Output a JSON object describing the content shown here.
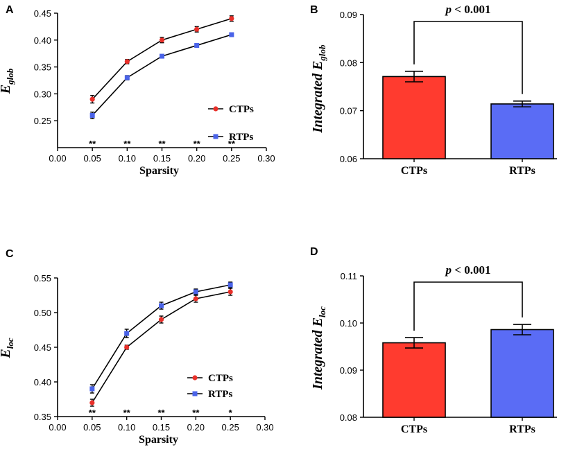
{
  "chart_data": [
    {
      "panel": "A",
      "type": "line",
      "xlabel": "Sparsity",
      "ylabel_base": "E",
      "ylabel_sub": "glob",
      "xlim": [
        0.0,
        0.3
      ],
      "ylim": [
        0.2,
        0.45
      ],
      "xticks": [
        "0.00",
        "0.05",
        "0.10",
        "0.15",
        "0.20",
        "0.25",
        "0.30"
      ],
      "yticks": [
        "0.25",
        "0.30",
        "0.35",
        "0.40",
        "0.45"
      ],
      "x": [
        0.05,
        0.1,
        0.15,
        0.2,
        0.25
      ],
      "series": [
        {
          "name": "CTPs",
          "color": "#e8302a",
          "marker": "circle",
          "values": [
            0.29,
            0.36,
            0.4,
            0.42,
            0.44
          ],
          "errors": [
            0.007,
            0.004,
            0.005,
            0.005,
            0.005
          ]
        },
        {
          "name": "RTPs",
          "color": "#4a63e8",
          "marker": "square",
          "values": [
            0.26,
            0.33,
            0.37,
            0.39,
            0.41
          ],
          "errors": [
            0.006,
            0.004,
            0.002,
            0.002,
            0.002
          ]
        }
      ],
      "significance": [
        "**",
        "**",
        "**",
        "**",
        "**"
      ],
      "legend_position": "right"
    },
    {
      "panel": "B",
      "type": "bar",
      "ylabel_base": "Integrated E",
      "ylabel_sub": "glob",
      "categories": [
        "CTPs",
        "RTPs"
      ],
      "values": [
        0.0771,
        0.0714
      ],
      "errors": [
        0.0011,
        0.0006
      ],
      "colors": [
        "#ff3b2f",
        "#5a6cf5"
      ],
      "ylim": [
        0.06,
        0.09
      ],
      "yticks": [
        "0.06",
        "0.07",
        "0.08",
        "0.09"
      ],
      "annotation": "p < 0.001",
      "annotation_p": "p",
      "annotation_rest": " < 0.001"
    },
    {
      "panel": "C",
      "type": "line",
      "xlabel": "Sparsity",
      "ylabel_base": "E",
      "ylabel_sub": "loc",
      "xlim": [
        0.0,
        0.3
      ],
      "ylim": [
        0.35,
        0.55
      ],
      "xticks": [
        "0.00",
        "0.05",
        "0.10",
        "0.15",
        "0.20",
        "0.25",
        "0.30"
      ],
      "yticks": [
        "0.35",
        "0.40",
        "0.45",
        "0.50",
        "0.55"
      ],
      "x": [
        0.05,
        0.1,
        0.15,
        0.2,
        0.25
      ],
      "series": [
        {
          "name": "CTPs",
          "color": "#e8302a",
          "marker": "circle",
          "values": [
            0.37,
            0.45,
            0.49,
            0.52,
            0.53
          ],
          "errors": [
            0.005,
            0.003,
            0.005,
            0.005,
            0.005
          ]
        },
        {
          "name": "RTPs",
          "color": "#4a63e8",
          "marker": "square",
          "values": [
            0.39,
            0.47,
            0.51,
            0.53,
            0.54
          ],
          "errors": [
            0.006,
            0.006,
            0.005,
            0.004,
            0.004
          ]
        }
      ],
      "significance": [
        "**",
        "**",
        "**",
        "**",
        "*"
      ],
      "legend_position": "center"
    },
    {
      "panel": "D",
      "type": "bar",
      "ylabel_base": "Integrated E",
      "ylabel_sub": "loc",
      "categories": [
        "CTPs",
        "RTPs"
      ],
      "values": [
        0.0958,
        0.0986
      ],
      "errors": [
        0.0011,
        0.0011
      ],
      "colors": [
        "#ff3b2f",
        "#5a6cf5"
      ],
      "ylim": [
        0.08,
        0.11
      ],
      "yticks": [
        "0.08",
        "0.09",
        "0.10",
        "0.11"
      ],
      "annotation": "p < 0.001",
      "annotation_p": "p",
      "annotation_rest": " < 0.001"
    }
  ]
}
